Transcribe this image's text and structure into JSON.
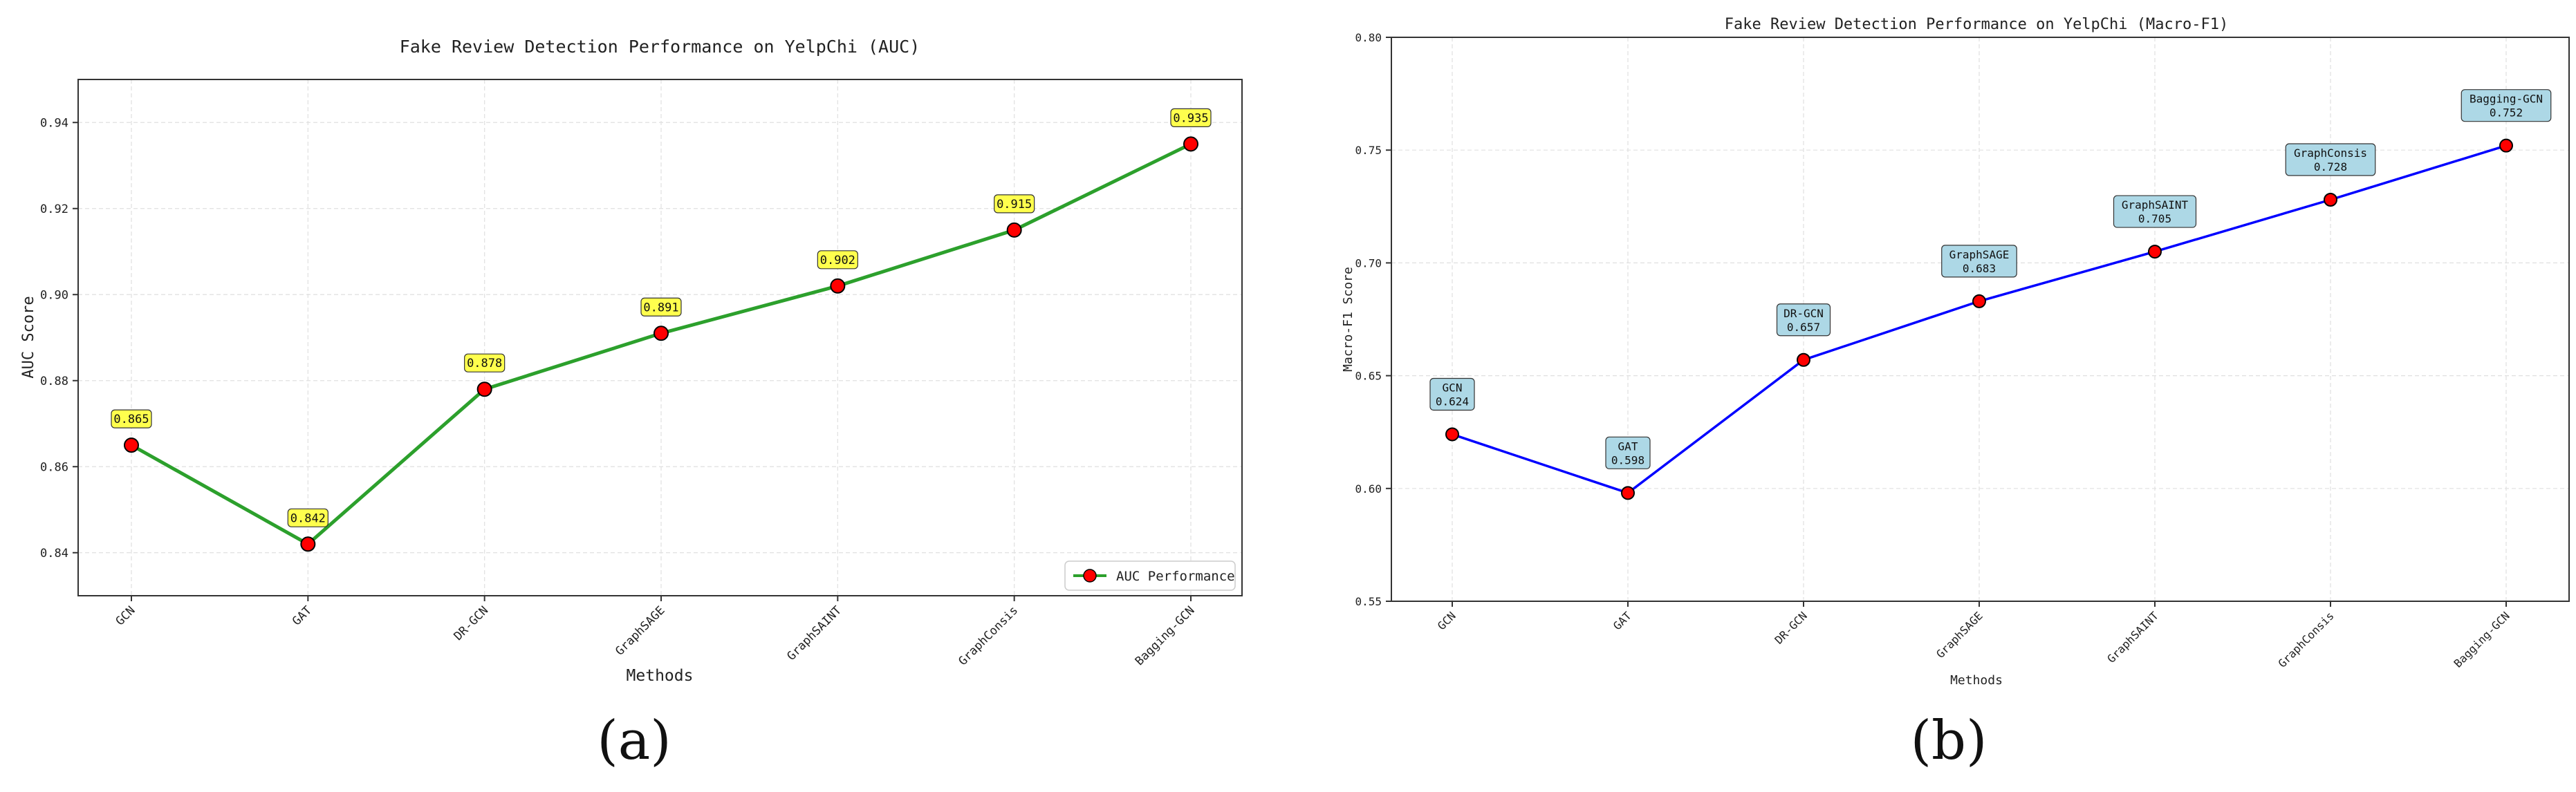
{
  "chart_data": [
    {
      "type": "line",
      "panel_label": "(a)",
      "title": "Fake Review Detection Performance on YelpChi (AUC)",
      "xlabel": "Methods",
      "ylabel": "AUC Score",
      "categories": [
        "GCN",
        "GAT",
        "DR-GCN",
        "GraphSAGE",
        "GraphSAINT",
        "GraphConsis",
        "Bagging-GCN"
      ],
      "series": [
        {
          "name": "AUC Performance",
          "values": [
            0.865,
            0.842,
            0.878,
            0.891,
            0.902,
            0.915,
            0.935
          ],
          "color": "#2ca02c"
        }
      ],
      "data_labels": [
        "0.865",
        "0.842",
        "0.878",
        "0.891",
        "0.902",
        "0.915",
        "0.935"
      ],
      "ylim": [
        0.83,
        0.95
      ],
      "yticks": [
        "0.84",
        "0.86",
        "0.88",
        "0.90",
        "0.92",
        "0.94"
      ],
      "grid": true,
      "legend": "bottom-right",
      "marker_color": "#ff0000",
      "label_box_color": "#ffff4d"
    },
    {
      "type": "line",
      "panel_label": "(b)",
      "title": "Fake Review Detection Performance on YelpChi (Macro-F1)",
      "xlabel": "Methods",
      "ylabel": "Macro-F1 Score",
      "categories": [
        "GCN",
        "GAT",
        "DR-GCN",
        "GraphSAGE",
        "GraphSAINT",
        "GraphConsis",
        "Bagging-GCN"
      ],
      "series": [
        {
          "name": "Macro-F1",
          "values": [
            0.624,
            0.598,
            0.657,
            0.683,
            0.705,
            0.728,
            0.752
          ],
          "color": "#0000ff"
        }
      ],
      "data_labels": [
        {
          "name": "GCN",
          "value": "0.624"
        },
        {
          "name": "GAT",
          "value": "0.598"
        },
        {
          "name": "DR-GCN",
          "value": "0.657"
        },
        {
          "name": "GraphSAGE",
          "value": "0.683"
        },
        {
          "name": "GraphSAINT",
          "value": "0.705"
        },
        {
          "name": "GraphConsis",
          "value": "0.728"
        },
        {
          "name": "Bagging-GCN",
          "value": "0.752"
        }
      ],
      "ylim": [
        0.55,
        0.8
      ],
      "yticks": [
        "0.55",
        "0.60",
        "0.65",
        "0.70",
        "0.75",
        "0.80"
      ],
      "grid": true,
      "legend": "none",
      "marker_color": "#ff0000",
      "label_box_color": "#add8e6"
    }
  ]
}
